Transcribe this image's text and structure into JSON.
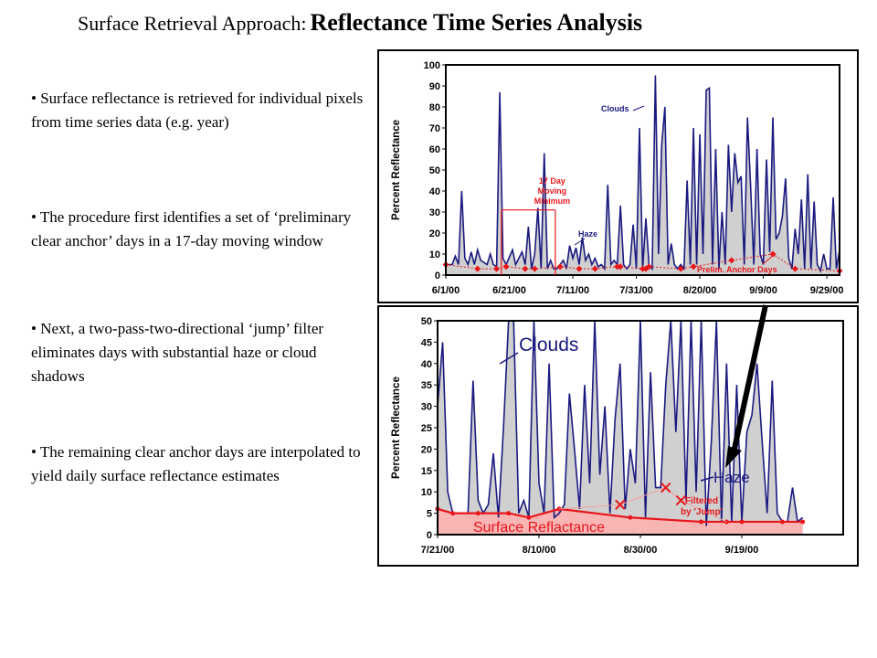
{
  "title": {
    "prefix": "Surface Retrieval Approach:",
    "main": "Reflectance Time Series Analysis"
  },
  "bullets": [
    "• Surface reflectance is retrieved for individual pixels from time series data (e.g. year)",
    "• The procedure first identifies a set of ‘preliminary clear anchor’ days in a 17-day moving window",
    "• Next, a two-pass-two-directional ‘jump’ filter eliminates days with substantial haze or cloud shadows",
    "• The remaining clear anchor days are interpolated to yield daily surface reflectance estimates"
  ],
  "colors": {
    "series_line": "#1a1a80",
    "area_fill": "#d0d0d0",
    "anchor_red": "#e8161b",
    "surface_fill": "#f9b4b4"
  },
  "chart_data": [
    {
      "type": "area",
      "ylabel": "Percent Reflectance",
      "ylim": [
        0,
        100
      ],
      "yticks": [
        "0",
        "10",
        "20",
        "30",
        "40",
        "50",
        "60",
        "70",
        "80",
        "90",
        "100"
      ],
      "xlim": [
        0,
        124
      ],
      "xticks": [
        {
          "x": 0,
          "label": "6/1/00"
        },
        {
          "x": 20,
          "label": "6/21/00"
        },
        {
          "x": 40,
          "label": "7/11/00"
        },
        {
          "x": 60,
          "label": "7/31/00"
        },
        {
          "x": 80,
          "label": "8/20/00"
        },
        {
          "x": 100,
          "label": "9/9/00"
        },
        {
          "x": 120,
          "label": "9/29/00"
        }
      ],
      "grid": false,
      "series": [
        {
          "values": [
            [
              0,
              5
            ],
            [
              2,
              5
            ],
            [
              3,
              9
            ],
            [
              4,
              5
            ],
            [
              5,
              40
            ],
            [
              6,
              8
            ],
            [
              7,
              5
            ],
            [
              8,
              11
            ],
            [
              9,
              5
            ],
            [
              10,
              12
            ],
            [
              11,
              7
            ],
            [
              13,
              5
            ],
            [
              14,
              10
            ],
            [
              15,
              5
            ],
            [
              16,
              4
            ],
            [
              17,
              87
            ],
            [
              18,
              8
            ],
            [
              19,
              5
            ],
            [
              21,
              12
            ],
            [
              22,
              5
            ],
            [
              24,
              11
            ],
            [
              25,
              5
            ],
            [
              26,
              23
            ],
            [
              27,
              3
            ],
            [
              28,
              10
            ],
            [
              29,
              32
            ],
            [
              30,
              3
            ],
            [
              31,
              58
            ],
            [
              32,
              3
            ],
            [
              33,
              7
            ],
            [
              34,
              3
            ],
            [
              35,
              3
            ],
            [
              37,
              7
            ],
            [
              38,
              3
            ],
            [
              39,
              14
            ],
            [
              40,
              8
            ],
            [
              41,
              13
            ],
            [
              42,
              5
            ],
            [
              43,
              18
            ],
            [
              44,
              7
            ],
            [
              45,
              10
            ],
            [
              46,
              5
            ],
            [
              47,
              8
            ],
            [
              48,
              4
            ],
            [
              49,
              5
            ],
            [
              50,
              3
            ],
            [
              51,
              43
            ],
            [
              52,
              5
            ],
            [
              53,
              7
            ],
            [
              54,
              5
            ],
            [
              55,
              33
            ],
            [
              56,
              5
            ],
            [
              57,
              3
            ],
            [
              58,
              5
            ],
            [
              59,
              24
            ],
            [
              60,
              3
            ],
            [
              61,
              70
            ],
            [
              62,
              3
            ],
            [
              63,
              27
            ],
            [
              64,
              5
            ],
            [
              65,
              3
            ],
            [
              66,
              95
            ],
            [
              67,
              10
            ],
            [
              68,
              62
            ],
            [
              69,
              80
            ],
            [
              70,
              5
            ],
            [
              71,
              15
            ],
            [
              72,
              5
            ],
            [
              73,
              3
            ],
            [
              74,
              5
            ],
            [
              75,
              3
            ],
            [
              76,
              45
            ],
            [
              77,
              5
            ],
            [
              78,
              70
            ],
            [
              79,
              5
            ],
            [
              80,
              67
            ],
            [
              81,
              10
            ],
            [
              82,
              88
            ],
            [
              83,
              89
            ],
            [
              84,
              5
            ],
            [
              85,
              60
            ],
            [
              86,
              3
            ],
            [
              87,
              30
            ],
            [
              88,
              5
            ],
            [
              89,
              62
            ],
            [
              90,
              30
            ],
            [
              91,
              58
            ],
            [
              92,
              44
            ],
            [
              93,
              47
            ],
            [
              94,
              5
            ],
            [
              95,
              75
            ],
            [
              96,
              42
            ],
            [
              97,
              5
            ],
            [
              98,
              60
            ],
            [
              99,
              10
            ],
            [
              100,
              5
            ],
            [
              101,
              55
            ],
            [
              102,
              11
            ],
            [
              103,
              75
            ],
            [
              104,
              17
            ],
            [
              105,
              20
            ],
            [
              106,
              28
            ],
            [
              107,
              46
            ],
            [
              108,
              8
            ],
            [
              109,
              3
            ],
            [
              110,
              22
            ],
            [
              111,
              10
            ],
            [
              112,
              36
            ],
            [
              113,
              3
            ],
            [
              114,
              48
            ],
            [
              115,
              3
            ],
            [
              116,
              35
            ],
            [
              117,
              5
            ],
            [
              118,
              2
            ],
            [
              119,
              10
            ],
            [
              120,
              3
            ],
            [
              121,
              3
            ],
            [
              122,
              37
            ],
            [
              123,
              3
            ],
            [
              124,
              12
            ],
            [
              125,
              3
            ]
          ]
        },
        {
          "name": "Prelim. Anchor Days",
          "values": [
            [
              0,
              5
            ],
            [
              10,
              3
            ],
            [
              16,
              3
            ],
            [
              19,
              4
            ],
            [
              25,
              3
            ],
            [
              28,
              3
            ],
            [
              36,
              4
            ],
            [
              42,
              3
            ],
            [
              47,
              3
            ],
            [
              54,
              4
            ],
            [
              55,
              4
            ],
            [
              62,
              3
            ],
            [
              63,
              3
            ],
            [
              64,
              4
            ],
            [
              74,
              3
            ],
            [
              78,
              4
            ],
            [
              90,
              7
            ],
            [
              103,
              10
            ],
            [
              110,
              3
            ],
            [
              124,
              2
            ]
          ]
        }
      ],
      "annotations": [
        "Clouds",
        "Haze",
        "17 Day Moving Minimum",
        "Prelim. Anchor Days"
      ]
    },
    {
      "type": "area",
      "ylabel": "Percent Reflectance",
      "ylim": [
        0,
        50
      ],
      "yticks": [
        "0",
        "5",
        "10",
        "15",
        "20",
        "25",
        "30",
        "35",
        "40",
        "45",
        "50"
      ],
      "xlim": [
        0,
        80
      ],
      "xticks": [
        {
          "x": 0,
          "label": "7/21/00"
        },
        {
          "x": 20,
          "label": "8/10/00"
        },
        {
          "x": 40,
          "label": "8/30/00"
        },
        {
          "x": 60,
          "label": "9/19/00"
        }
      ],
      "grid": false,
      "series": [
        {
          "values": [
            [
              0,
              30
            ],
            [
              1,
              45
            ],
            [
              2,
              10
            ],
            [
              3,
              5
            ],
            [
              4,
              5
            ],
            [
              5,
              5
            ],
            [
              6,
              5
            ],
            [
              7,
              36
            ],
            [
              8,
              8
            ],
            [
              9,
              5
            ],
            [
              10,
              7
            ],
            [
              11,
              19
            ],
            [
              12,
              4
            ],
            [
              13,
              25
            ],
            [
              14,
              55
            ],
            [
              15,
              55
            ],
            [
              16,
              5
            ],
            [
              17,
              8
            ],
            [
              18,
              4
            ],
            [
              19,
              55
            ],
            [
              20,
              12
            ],
            [
              21,
              5
            ],
            [
              22,
              40
            ],
            [
              23,
              4
            ],
            [
              24,
              5
            ],
            [
              25,
              7
            ],
            [
              26,
              33
            ],
            [
              27,
              20
            ],
            [
              28,
              6
            ],
            [
              29,
              35
            ],
            [
              30,
              12
            ],
            [
              31,
              55
            ],
            [
              32,
              14
            ],
            [
              33,
              30
            ],
            [
              34,
              5
            ],
            [
              35,
              27
            ],
            [
              36,
              40
            ],
            [
              37,
              6
            ],
            [
              38,
              20
            ],
            [
              39,
              12
            ],
            [
              40,
              55
            ],
            [
              41,
              4
            ],
            [
              42,
              38
            ],
            [
              43,
              11
            ],
            [
              44,
              11
            ],
            [
              45,
              35
            ],
            [
              46,
              55
            ],
            [
              47,
              24
            ],
            [
              48,
              55
            ],
            [
              49,
              8
            ],
            [
              50,
              55
            ],
            [
              51,
              10
            ],
            [
              52,
              55
            ],
            [
              53,
              2
            ],
            [
              54,
              22
            ],
            [
              55,
              55
            ],
            [
              56,
              3
            ],
            [
              57,
              40
            ],
            [
              58,
              3
            ],
            [
              59,
              35
            ],
            [
              60,
              3
            ],
            [
              61,
              24
            ],
            [
              62,
              28
            ],
            [
              63,
              40
            ],
            [
              64,
              22
            ],
            [
              65,
              5
            ],
            [
              66,
              36
            ],
            [
              67,
              5
            ],
            [
              68,
              3
            ],
            [
              69,
              3
            ],
            [
              70,
              11
            ],
            [
              71,
              3
            ],
            [
              72,
              4
            ]
          ]
        },
        {
          "name": "Surface Reflactance",
          "values": [
            [
              0,
              6
            ],
            [
              3,
              5
            ],
            [
              8,
              5
            ],
            [
              14,
              5
            ],
            [
              18,
              4
            ],
            [
              24,
              6
            ],
            [
              38,
              4
            ],
            [
              52,
              3
            ],
            [
              57,
              3
            ],
            [
              60,
              3
            ],
            [
              68,
              3
            ],
            [
              72,
              3
            ]
          ]
        },
        {
          "name": "Filtered by 'Jump'",
          "values": [
            [
              36,
              7
            ],
            [
              45,
              11
            ],
            [
              48,
              8
            ]
          ]
        }
      ],
      "annotations": [
        "Clouds",
        "Haze",
        "Filtered by 'Jump'",
        "Surface Reflactance"
      ]
    }
  ]
}
